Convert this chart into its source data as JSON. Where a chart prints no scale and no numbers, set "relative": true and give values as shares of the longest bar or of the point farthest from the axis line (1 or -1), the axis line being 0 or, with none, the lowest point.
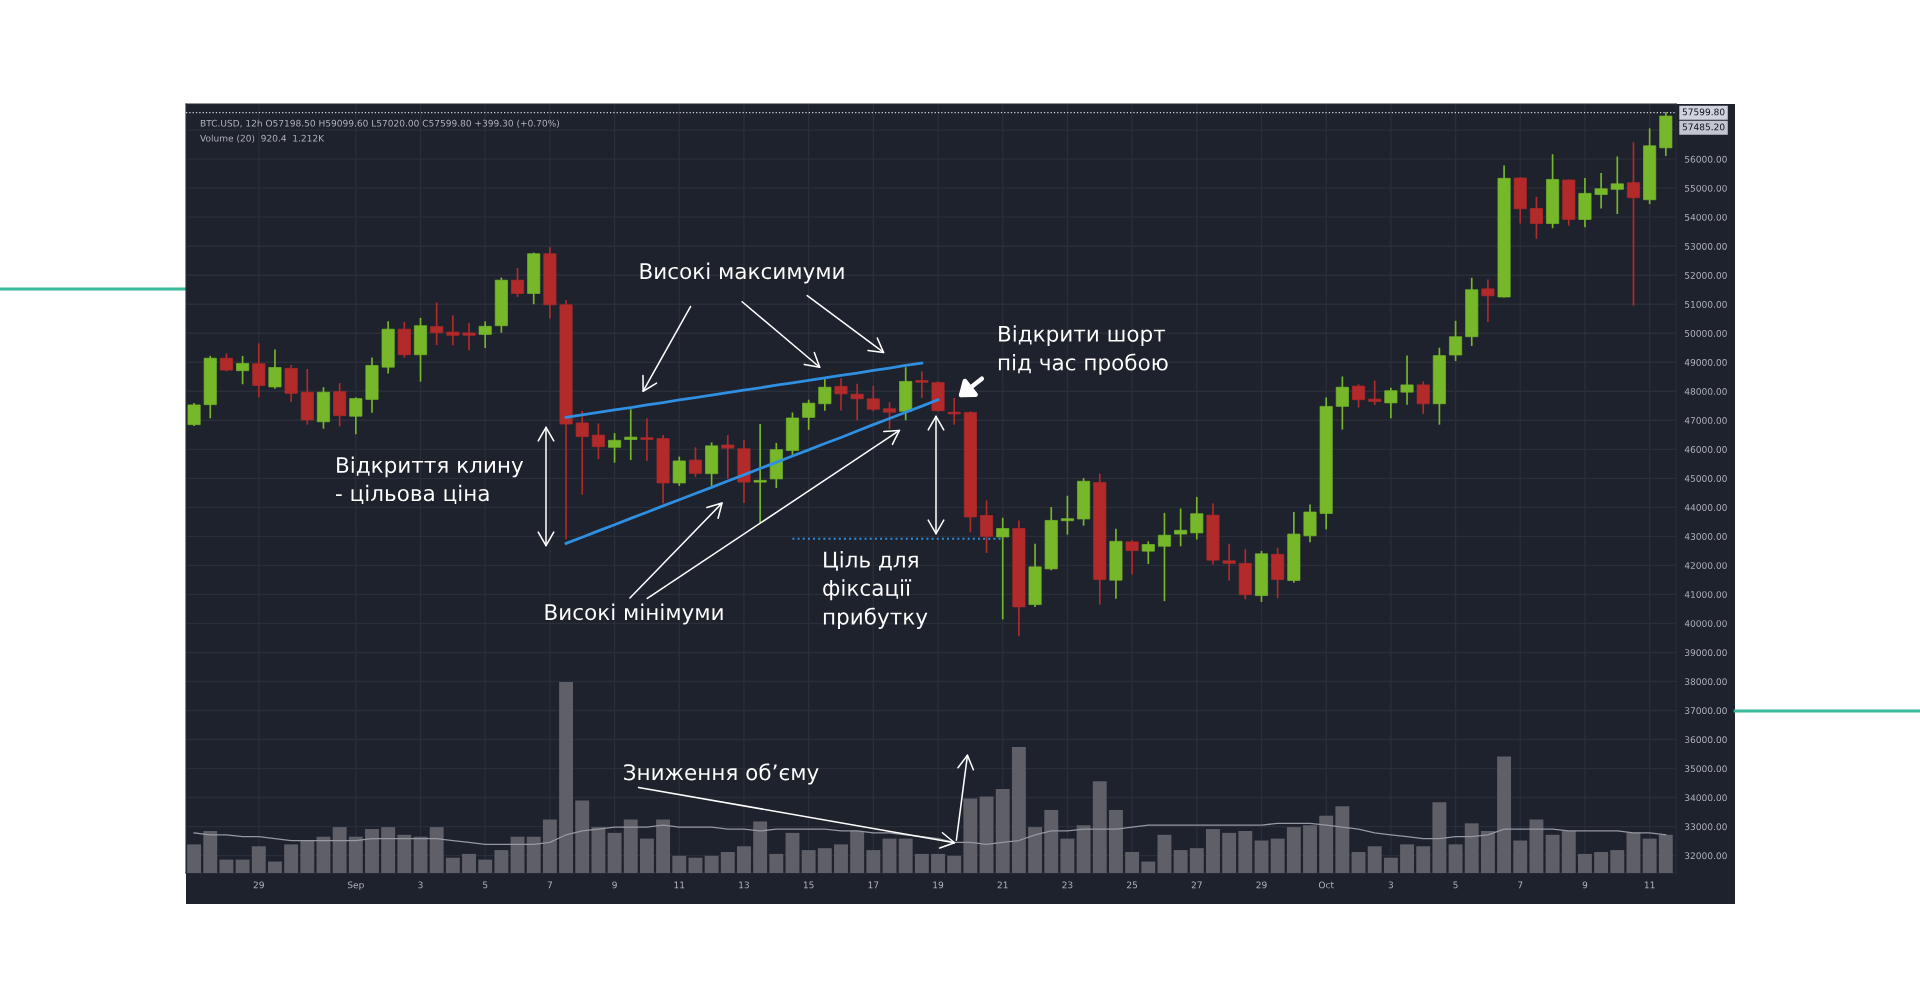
{
  "chart_data": [
    {
      "type": "candlestick",
      "title": "BTC.USD, 12h O57198.50 H59099.60 L57020.00 C57599.80 +399.30 (+0.70%)",
      "categories": [
        null,
        null,
        null,
        null,
        "29",
        null,
        null,
        null,
        null,
        null,
        "Sep",
        null,
        null,
        null,
        "3",
        null,
        null,
        null,
        "5",
        null,
        null,
        null,
        "7",
        null,
        null,
        null,
        "9",
        null,
        null,
        null,
        "11",
        null,
        null,
        null,
        "13",
        null,
        null,
        null,
        "15",
        null,
        null,
        null,
        "17",
        null,
        null,
        null,
        "19",
        null,
        null,
        null,
        "21",
        null,
        null,
        null,
        "23",
        null,
        null,
        null,
        "25",
        null,
        null,
        null,
        "27",
        null,
        null,
        null,
        "29",
        null,
        null,
        null,
        "Oct",
        null,
        null,
        null,
        "3",
        null,
        null,
        null,
        "5",
        null,
        null,
        null,
        "7",
        null,
        null,
        null,
        "9",
        null,
        null,
        null,
        "11",
        null
      ],
      "ohlc": [
        [
          46850,
          47600,
          46800,
          47530
        ],
        [
          47540,
          49220,
          47070,
          49140
        ],
        [
          49140,
          49310,
          48690,
          48730
        ],
        [
          48710,
          49220,
          48240,
          48960
        ],
        [
          48950,
          49650,
          47790,
          48200
        ],
        [
          48150,
          49440,
          48090,
          48820
        ],
        [
          48790,
          48910,
          47630,
          47930
        ],
        [
          47970,
          48770,
          46850,
          47010
        ],
        [
          46950,
          48140,
          46710,
          47970
        ],
        [
          47990,
          48280,
          46790,
          47160
        ],
        [
          47140,
          47790,
          46520,
          47750
        ],
        [
          47720,
          49160,
          47260,
          48890
        ],
        [
          48830,
          50410,
          48610,
          50140
        ],
        [
          50140,
          50390,
          49160,
          49260
        ],
        [
          49260,
          50530,
          48330,
          50260
        ],
        [
          50230,
          51060,
          49590,
          50020
        ],
        [
          50040,
          50610,
          49590,
          49930
        ],
        [
          50010,
          50350,
          49410,
          49930
        ],
        [
          49960,
          50410,
          49490,
          50240
        ],
        [
          50260,
          51920,
          50020,
          51830
        ],
        [
          51830,
          52250,
          51250,
          51370
        ],
        [
          51370,
          52780,
          51000,
          52740
        ],
        [
          52740,
          52960,
          50510,
          50980
        ],
        [
          50980,
          51150,
          42900,
          46870
        ],
        [
          46910,
          47320,
          44440,
          46440
        ],
        [
          46490,
          46890,
          45660,
          46090
        ],
        [
          46070,
          46560,
          45540,
          46310
        ],
        [
          46340,
          47380,
          45630,
          46420
        ],
        [
          46400,
          47070,
          45600,
          46340
        ],
        [
          46370,
          46490,
          44130,
          44840
        ],
        [
          44840,
          45750,
          44740,
          45600
        ],
        [
          45630,
          46070,
          45050,
          45170
        ],
        [
          45160,
          46240,
          44740,
          46120
        ],
        [
          46150,
          46490,
          44990,
          46040
        ],
        [
          46020,
          46330,
          44150,
          44870
        ],
        [
          44870,
          46870,
          43460,
          44930
        ],
        [
          44980,
          46220,
          44670,
          45990
        ],
        [
          45960,
          47270,
          45810,
          47080
        ],
        [
          47100,
          47710,
          46670,
          47590
        ],
        [
          47570,
          48420,
          47330,
          48140
        ],
        [
          48170,
          48450,
          47340,
          47910
        ],
        [
          47900,
          48260,
          47000,
          47740
        ],
        [
          47740,
          48190,
          47310,
          47380
        ],
        [
          47400,
          47620,
          46700,
          47280
        ],
        [
          47310,
          48830,
          47000,
          48340
        ],
        [
          48370,
          48680,
          47770,
          48310
        ],
        [
          48300,
          48340,
          47310,
          47330
        ],
        [
          47280,
          47770,
          46850,
          47220
        ],
        [
          47270,
          47310,
          43140,
          43670
        ],
        [
          43720,
          44240,
          42430,
          43000
        ],
        [
          42980,
          43640,
          40140,
          43270
        ],
        [
          43270,
          43550,
          39560,
          40570
        ],
        [
          40650,
          42750,
          40570,
          41950
        ],
        [
          41880,
          44010,
          41830,
          43550
        ],
        [
          43540,
          44400,
          43060,
          43610
        ],
        [
          43600,
          45010,
          43370,
          44900
        ],
        [
          44860,
          45160,
          40650,
          41510
        ],
        [
          41490,
          43260,
          40850,
          42830
        ],
        [
          42810,
          42870,
          41690,
          42510
        ],
        [
          42490,
          42830,
          42050,
          42720
        ],
        [
          42660,
          43810,
          40770,
          43040
        ],
        [
          43080,
          43960,
          42660,
          43210
        ],
        [
          43120,
          44360,
          42890,
          43780
        ],
        [
          43730,
          44130,
          42030,
          42180
        ],
        [
          42160,
          42750,
          41480,
          42070
        ],
        [
          42070,
          42560,
          40830,
          40990
        ],
        [
          40960,
          42500,
          40740,
          42400
        ],
        [
          42380,
          42610,
          40870,
          41510
        ],
        [
          41480,
          43840,
          41400,
          43080
        ],
        [
          43020,
          44100,
          42800,
          43840
        ],
        [
          43790,
          47790,
          43240,
          47480
        ],
        [
          47480,
          48510,
          46680,
          48140
        ],
        [
          48180,
          48240,
          47440,
          47710
        ],
        [
          47730,
          48370,
          47530,
          47650
        ],
        [
          47600,
          48120,
          47070,
          48020
        ],
        [
          47970,
          49230,
          47540,
          48220
        ],
        [
          48220,
          48340,
          47220,
          47570
        ],
        [
          47570,
          49500,
          46850,
          49230
        ],
        [
          49250,
          50430,
          49040,
          49880
        ],
        [
          49880,
          51910,
          49560,
          51500
        ],
        [
          51530,
          51850,
          50390,
          51290
        ],
        [
          51250,
          55780,
          51230,
          55340
        ],
        [
          55350,
          55370,
          53780,
          54290
        ],
        [
          54300,
          54700,
          53250,
          53780
        ],
        [
          53780,
          56170,
          53620,
          55300
        ],
        [
          55280,
          55300,
          53710,
          53920
        ],
        [
          53920,
          55350,
          53650,
          54820
        ],
        [
          54780,
          55520,
          54300,
          54980
        ],
        [
          54960,
          56090,
          54110,
          55150
        ],
        [
          55190,
          56580,
          50950,
          54670
        ],
        [
          54600,
          57060,
          54450,
          56460
        ],
        [
          56390,
          57620,
          56110,
          57485.2
        ]
      ],
      "colors": [
        "#76b82a",
        "#76b82a",
        "#b22a2a",
        "#76b82a",
        "#b22a2a",
        "#76b82a",
        "#b22a2a",
        "#b22a2a",
        "#76b82a",
        "#b22a2a",
        "#76b82a",
        "#76b82a",
        "#76b82a",
        "#b22a2a",
        "#76b82a",
        "#b22a2a",
        "#b22a2a",
        "#b22a2a",
        "#76b82a",
        "#76b82a",
        "#b22a2a",
        "#76b82a",
        "#b22a2a",
        "#b22a2a",
        "#b22a2a",
        "#b22a2a",
        "#76b82a",
        "#76b82a",
        "#b22a2a",
        "#b22a2a",
        "#76b82a",
        "#b22a2a",
        "#76b82a",
        "#b22a2a",
        "#b22a2a",
        "#76b82a",
        "#76b82a",
        "#76b82a",
        "#76b82a",
        "#76b82a",
        "#b22a2a",
        "#b22a2a",
        "#b22a2a",
        "#b22a2a",
        "#76b82a",
        "#b22a2a",
        "#b22a2a",
        "#b22a2a",
        "#b22a2a",
        "#b22a2a",
        "#76b82a",
        "#b22a2a",
        "#76b82a",
        "#76b82a",
        "#76b82a",
        "#76b82a",
        "#b22a2a",
        "#76b82a",
        "#b22a2a",
        "#76b82a",
        "#76b82a",
        "#76b82a",
        "#76b82a",
        "#b22a2a",
        "#b22a2a",
        "#b22a2a",
        "#76b82a",
        "#b22a2a",
        "#76b82a",
        "#76b82a",
        "#76b82a",
        "#76b82a",
        "#b22a2a",
        "#b22a2a",
        "#76b82a",
        "#76b82a",
        "#b22a2a",
        "#76b82a",
        "#76b82a",
        "#76b82a",
        "#b22a2a",
        "#76b82a",
        "#b22a2a",
        "#b22a2a",
        "#76b82a",
        "#b22a2a",
        "#76b82a",
        "#76b82a",
        "#76b82a",
        "#b22a2a",
        "#76b82a",
        "#76b82a"
      ],
      "series": [
        {
          "type": "line",
          "color": "#2f8fe0",
          "values": [
            null,
            null,
            null,
            null,
            null,
            null,
            null,
            null,
            null,
            null,
            null,
            null,
            null,
            null,
            null,
            null,
            null,
            null,
            null,
            null,
            null,
            null,
            null,
            47100,
            47190,
            47270,
            47360,
            47440,
            47530,
            47610,
            47700,
            47780,
            47870,
            47950,
            48040,
            48120,
            48210,
            48290,
            48380,
            48460,
            48550,
            48630,
            48720,
            48800,
            48890,
            48970,
            null,
            null,
            null,
            null,
            null,
            null,
            null,
            null,
            null,
            null,
            null,
            null,
            null,
            null,
            null,
            null,
            null,
            null,
            null,
            null,
            null,
            null,
            null,
            null,
            null,
            null,
            null,
            null,
            null,
            null,
            null,
            null,
            null,
            null,
            null,
            null,
            null,
            null,
            null,
            null,
            null,
            null,
            null,
            null,
            null,
            null
          ]
        },
        {
          "type": "line",
          "color": "#2f8fe0",
          "values": [
            null,
            null,
            null,
            null,
            null,
            null,
            null,
            null,
            null,
            null,
            null,
            null,
            null,
            null,
            null,
            null,
            null,
            null,
            null,
            null,
            null,
            null,
            null,
            42760,
            42970,
            43190,
            43400,
            43620,
            43830,
            44050,
            44260,
            44480,
            44690,
            44910,
            45120,
            45340,
            45550,
            45770,
            45980,
            46200,
            46410,
            46630,
            46850,
            47060,
            47280,
            47490,
            47710,
            null,
            null,
            null,
            null,
            null,
            null,
            null,
            null,
            null,
            null,
            null,
            null,
            null,
            null,
            null,
            null,
            null,
            null,
            null,
            null,
            null,
            null,
            null,
            null,
            null,
            null,
            null,
            null,
            null,
            null,
            null,
            null,
            null,
            null,
            null,
            null,
            null,
            null,
            null,
            null,
            null,
            null,
            null,
            null,
            null
          ]
        },
        {
          "type": "line",
          "color": "#2f8fe0",
          "line_style": "dotted",
          "values": [
            null,
            null,
            null,
            null,
            null,
            null,
            null,
            null,
            null,
            null,
            null,
            null,
            null,
            null,
            null,
            null,
            null,
            null,
            null,
            null,
            null,
            null,
            null,
            null,
            null,
            null,
            null,
            null,
            null,
            null,
            null,
            null,
            null,
            null,
            null,
            null,
            null,
            42920,
            42920,
            42920,
            42920,
            42920,
            42920,
            42920,
            42920,
            42920,
            42920,
            42920,
            42920,
            42920,
            42920,
            null,
            null,
            null,
            null,
            null,
            null,
            null,
            null,
            null,
            null,
            null,
            null,
            null,
            null,
            null,
            null,
            null,
            null,
            null,
            null,
            null,
            null,
            null,
            null,
            null,
            null,
            null,
            null,
            null,
            null,
            null,
            null,
            null,
            null,
            null,
            null,
            null,
            null,
            null,
            null,
            null
          ]
        }
      ],
      "ylim": [
        31400,
        57900
      ],
      "yticks": [
        {
          "value": 32000,
          "label": "32000.00"
        },
        {
          "value": 33000,
          "label": "33000.00"
        },
        {
          "value": 34000,
          "label": "34000.00"
        },
        {
          "value": 35000,
          "label": "35000.00"
        },
        {
          "value": 36000,
          "label": "36000.00"
        },
        {
          "value": 37000,
          "label": "37000.00"
        },
        {
          "value": 38000,
          "label": "38000.00"
        },
        {
          "value": 39000,
          "label": "39000.00"
        },
        {
          "value": 40000,
          "label": "40000.00"
        },
        {
          "value": 41000,
          "label": "41000.00"
        },
        {
          "value": 42000,
          "label": "42000.00"
        },
        {
          "value": 43000,
          "label": "43000.00"
        },
        {
          "value": 44000,
          "label": "44000.00"
        },
        {
          "value": 45000,
          "label": "45000.00"
        },
        {
          "value": 46000,
          "label": "46000.00"
        },
        {
          "value": 47000,
          "label": "47000.00"
        },
        {
          "value": 48000,
          "label": "48000.00"
        },
        {
          "value": 49000,
          "label": "49000.00"
        },
        {
          "value": 50000,
          "label": "50000.00"
        },
        {
          "value": 51000,
          "label": "51000.00"
        },
        {
          "value": 52000,
          "label": "52000.00"
        },
        {
          "value": 53000,
          "label": "53000.00"
        },
        {
          "value": 54000,
          "label": "54000.00"
        },
        {
          "value": 55000,
          "label": "55000.00"
        },
        {
          "value": 56000,
          "label": "56000.00"
        },
        {
          "value": 57000,
          "label": null
        }
      ],
      "ref_lines": [
        {
          "axis": "y",
          "value": 57599.8,
          "label": "57599.80",
          "color": "#d1d4dc",
          "line_style": "dotted"
        }
      ],
      "annotations": [
        "Високі максимуми",
        "Відкрити шорт\nпід час пробою",
        "Відкриття клину\n- цільова ціна",
        "Високі мінімуми",
        "Ціль для\nфіксації\nприбутку",
        "57485.20"
      ],
      "grid": true
    },
    {
      "type": "bar",
      "relative": true,
      "title": "Volume (20)  920.4  1.212K",
      "categories": [
        null,
        null,
        null,
        null,
        null,
        null,
        null,
        null,
        null,
        null,
        null,
        null,
        null,
        null,
        null,
        null,
        null,
        null,
        null,
        null,
        null,
        null,
        null,
        null,
        null,
        null,
        null,
        null,
        null,
        null,
        null,
        null,
        null,
        null,
        null,
        null,
        null,
        null,
        null,
        null,
        null,
        null,
        null,
        null,
        null,
        null,
        null,
        null,
        null,
        null,
        null,
        null,
        null,
        null,
        null,
        null,
        null,
        null,
        null,
        null,
        null,
        null,
        null,
        null,
        null,
        null,
        null,
        null,
        null,
        null,
        null,
        null,
        null,
        null,
        null,
        null,
        null,
        null,
        null,
        null,
        null,
        null,
        null,
        null,
        null,
        null,
        null,
        null,
        null,
        null,
        null,
        null
      ],
      "series": [
        {
          "color": "#5f6067",
          "values": [
            0.15,
            0.22,
            0.07,
            0.07,
            0.14,
            0.06,
            0.15,
            0.17,
            0.19,
            0.24,
            0.19,
            0.23,
            0.24,
            0.2,
            0.19,
            0.24,
            0.08,
            0.1,
            0.07,
            0.12,
            0.19,
            0.19,
            0.28,
            1,
            0.38,
            0.24,
            0.21,
            0.28,
            0.18,
            0.28,
            0.09,
            0.08,
            0.09,
            0.11,
            0.14,
            0.27,
            0.1,
            0.21,
            0.12,
            0.13,
            0.15,
            0.22,
            0.12,
            0.18,
            0.18,
            0.1,
            0.1,
            0.09,
            0.39,
            0.4,
            0.44,
            0.66,
            0.24,
            0.33,
            0.18,
            0.25,
            0.48,
            0.33,
            0.11,
            0.06,
            0.2,
            0.12,
            0.13,
            0.23,
            0.21,
            0.22,
            0.17,
            0.18,
            0.24,
            0.25,
            0.3,
            0.35,
            0.11,
            0.14,
            0.08,
            0.15,
            0.14,
            0.37,
            0.15,
            0.26,
            0.22,
            0.61,
            0.17,
            0.28,
            0.2,
            0.22,
            0.1,
            0.11,
            0.12,
            0.21,
            0.18,
            0.2
          ]
        },
        {
          "type": "line",
          "color": "#9598a1",
          "values": [
            0.21,
            0.2,
            0.2,
            0.19,
            0.19,
            0.18,
            0.17,
            0.17,
            0.17,
            0.17,
            0.17,
            0.18,
            0.18,
            0.18,
            0.18,
            0.18,
            0.17,
            0.16,
            0.15,
            0.15,
            0.15,
            0.15,
            0.16,
            0.2,
            0.22,
            0.23,
            0.24,
            0.24,
            0.24,
            0.25,
            0.24,
            0.24,
            0.24,
            0.23,
            0.23,
            0.22,
            0.23,
            0.23,
            0.23,
            0.23,
            0.22,
            0.22,
            0.21,
            0.21,
            0.2,
            0.19,
            0.18,
            0.16,
            0.16,
            0.15,
            0.16,
            0.17,
            0.2,
            0.22,
            0.22,
            0.23,
            0.23,
            0.23,
            0.24,
            0.25,
            0.25,
            0.25,
            0.25,
            0.25,
            0.25,
            0.25,
            0.25,
            0.26,
            0.26,
            0.26,
            0.25,
            0.24,
            0.23,
            0.21,
            0.2,
            0.19,
            0.18,
            0.18,
            0.19,
            0.19,
            0.2,
            0.23,
            0.23,
            0.23,
            0.23,
            0.22,
            0.22,
            0.22,
            0.22,
            0.21,
            0.21,
            0.2
          ]
        }
      ],
      "annotations": [
        "Зниження об’єму"
      ]
    }
  ]
}
